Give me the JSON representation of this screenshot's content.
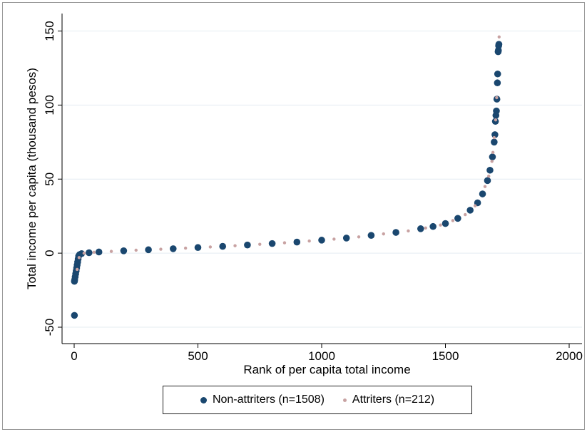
{
  "chart_data": {
    "type": "scatter",
    "title": "",
    "xlabel": "Rank of per capita total income",
    "ylabel": "Total income per capita (thousand pesos)",
    "xlim": [
      0,
      2000
    ],
    "ylim": [
      -50,
      150
    ],
    "xticks": [
      0,
      500,
      1000,
      1500,
      2000
    ],
    "yticks": [
      -50,
      0,
      50,
      100,
      150
    ],
    "grid": true,
    "legend_position": "bottom",
    "series": [
      {
        "name": "Non-attriters (n=1508)",
        "color": "#1a476f",
        "marker": "large-circle",
        "points": [
          [
            1,
            -42
          ],
          [
            1,
            -19
          ],
          [
            2,
            -18
          ],
          [
            4,
            -16
          ],
          [
            6,
            -14
          ],
          [
            8,
            -12
          ],
          [
            10,
            -10
          ],
          [
            12,
            -8
          ],
          [
            14,
            -6
          ],
          [
            16,
            -4
          ],
          [
            18,
            -2
          ],
          [
            22,
            -1
          ],
          [
            30,
            -0.3
          ],
          [
            60,
            0.3
          ],
          [
            100,
            0.8
          ],
          [
            200,
            1.6
          ],
          [
            300,
            2.3
          ],
          [
            400,
            3
          ],
          [
            500,
            3.8
          ],
          [
            600,
            4.6
          ],
          [
            700,
            5.5
          ],
          [
            800,
            6.5
          ],
          [
            900,
            7.5
          ],
          [
            1000,
            8.8
          ],
          [
            1100,
            10.2
          ],
          [
            1200,
            12
          ],
          [
            1300,
            14
          ],
          [
            1400,
            16.5
          ],
          [
            1450,
            18
          ],
          [
            1500,
            20
          ],
          [
            1550,
            23.5
          ],
          [
            1600,
            29
          ],
          [
            1630,
            34
          ],
          [
            1650,
            40
          ],
          [
            1670,
            49
          ],
          [
            1680,
            56
          ],
          [
            1690,
            65
          ],
          [
            1697,
            75
          ],
          [
            1700,
            80
          ],
          [
            1702,
            89
          ],
          [
            1704,
            93
          ],
          [
            1706,
            96
          ],
          [
            1708,
            104
          ],
          [
            1710,
            115
          ],
          [
            1711,
            121
          ],
          [
            1713,
            136
          ],
          [
            1714,
            137
          ],
          [
            1715,
            140
          ],
          [
            1716,
            141
          ]
        ]
      },
      {
        "name": "Attriters (n=212)",
        "color": "#c8a2a2",
        "marker": "small-circle",
        "points": [
          [
            12,
            -11
          ],
          [
            20,
            -3
          ],
          [
            40,
            0
          ],
          [
            80,
            0.6
          ],
          [
            150,
            1.2
          ],
          [
            250,
            2
          ],
          [
            350,
            2.7
          ],
          [
            450,
            3.4
          ],
          [
            550,
            4.2
          ],
          [
            650,
            5
          ],
          [
            750,
            6
          ],
          [
            850,
            7
          ],
          [
            950,
            8.2
          ],
          [
            1050,
            9.5
          ],
          [
            1150,
            11
          ],
          [
            1250,
            13
          ],
          [
            1350,
            15
          ],
          [
            1420,
            17
          ],
          [
            1480,
            19
          ],
          [
            1530,
            22
          ],
          [
            1580,
            26
          ],
          [
            1620,
            32
          ],
          [
            1660,
            45
          ],
          [
            1675,
            52
          ],
          [
            1688,
            62
          ],
          [
            1692,
            68
          ],
          [
            1697,
            78
          ],
          [
            1703,
            90
          ],
          [
            1707,
            105
          ],
          [
            1717,
            146
          ]
        ]
      }
    ]
  }
}
